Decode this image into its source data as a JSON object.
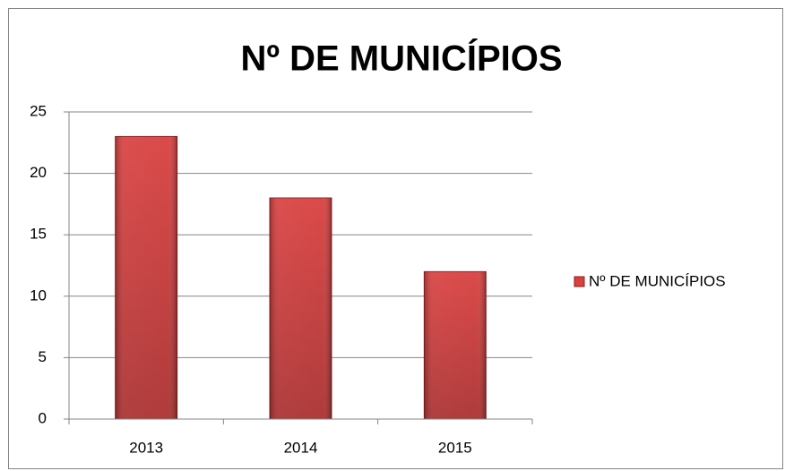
{
  "chart_data": {
    "type": "bar",
    "title": "Nº DE MUNICÍPIOS",
    "categories": [
      "2013",
      "2014",
      "2015"
    ],
    "series": [
      {
        "name": "Nº DE MUNICÍPIOS",
        "color": "#d94040",
        "values": [
          23,
          18,
          12
        ]
      }
    ],
    "ylim": [
      0,
      25
    ],
    "yticks": [
      0,
      5,
      10,
      15,
      20,
      25
    ],
    "grid": true,
    "legend": "right"
  }
}
